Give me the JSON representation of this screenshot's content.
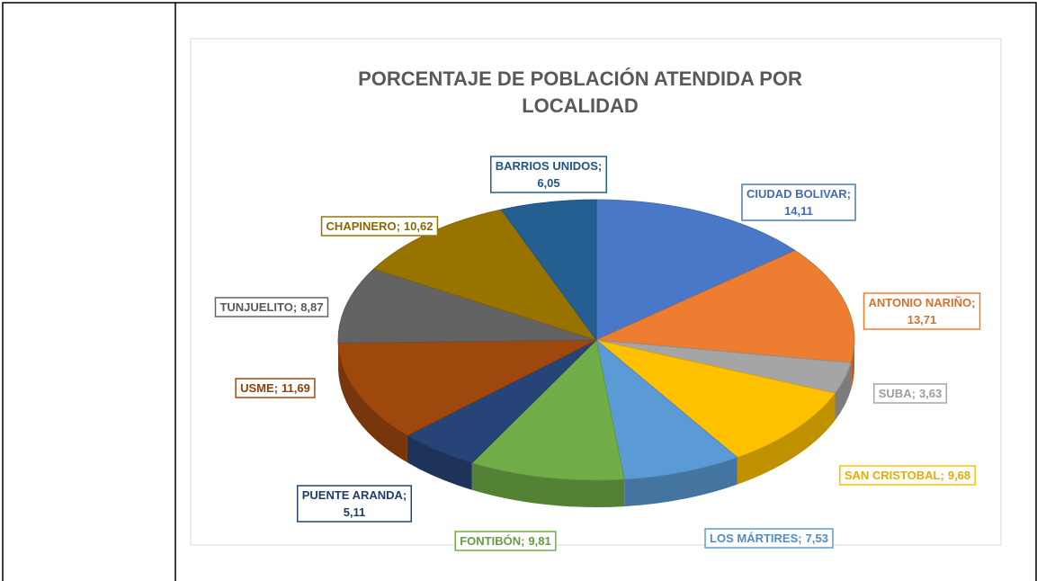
{
  "chart_data": {
    "type": "pie3d",
    "title": "PORCENTAJE DE POBLACIÓN ATENDIDA POR LOCALIDAD",
    "label_separator": ";",
    "categories": [
      "CIUDAD BOLIVAR",
      "ANTONIO NARIÑO",
      "SUBA",
      "SAN CRISTOBAL",
      "LOS MÁRTIRES",
      "FONTIBÓN",
      "PUENTE ARANDA",
      "USME",
      "TUNJUELITO",
      "CHAPINERO",
      "BARRIOS UNIDOS"
    ],
    "values": [
      14.11,
      13.71,
      3.63,
      9.68,
      7.53,
      9.81,
      5.11,
      11.69,
      8.87,
      10.62,
      6.05
    ],
    "value_labels": [
      "14,11",
      "13,71",
      "3,63",
      "9,68",
      "7,53",
      "9,81",
      "5,11",
      "11,69",
      "8,87",
      "10,62",
      "6,05"
    ],
    "colors": [
      "#4a78c8",
      "#ed7d31",
      "#a5a5a5",
      "#ffc000",
      "#5b9bd5",
      "#70ad47",
      "#264478",
      "#9e480e",
      "#636363",
      "#997300",
      "#255e91"
    ]
  }
}
